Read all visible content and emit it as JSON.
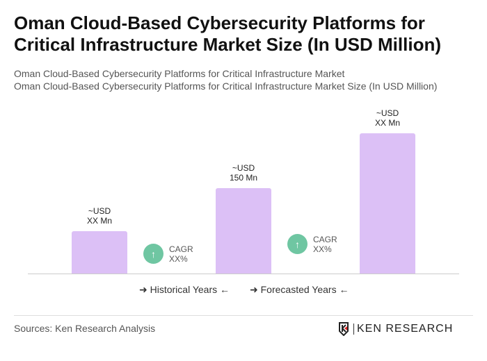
{
  "header": {
    "title": "Oman Cloud-Based Cybersecurity Platforms for Critical Infrastructure Market Size (In USD Million)",
    "subtitle1": "Oman Cloud-Based Cybersecurity Platforms for Critical Infrastructure Market",
    "subtitle2": "Oman Cloud-Based Cybersecurity Platforms for Critical Infrastructure Market Size (In USD Million)"
  },
  "chart_data": {
    "type": "bar",
    "values": [
      75,
      150,
      246
    ],
    "data_labels": [
      [
        "~USD",
        "XX Mn"
      ],
      [
        "~USD",
        "150 Mn"
      ],
      [
        "~USD",
        "XX Mn"
      ]
    ],
    "bar_color": "#dcc0f6",
    "cagr": [
      {
        "label": "CAGR",
        "value": "XX%"
      },
      {
        "label": "CAGR",
        "value": "XX%"
      }
    ],
    "legend": [
      "Historical Years",
      "Forecasted Years"
    ],
    "grid": false
  },
  "footer": {
    "sources": "Sources: Ken Research Analysis",
    "logo_text": "KEN RESEARCH"
  }
}
